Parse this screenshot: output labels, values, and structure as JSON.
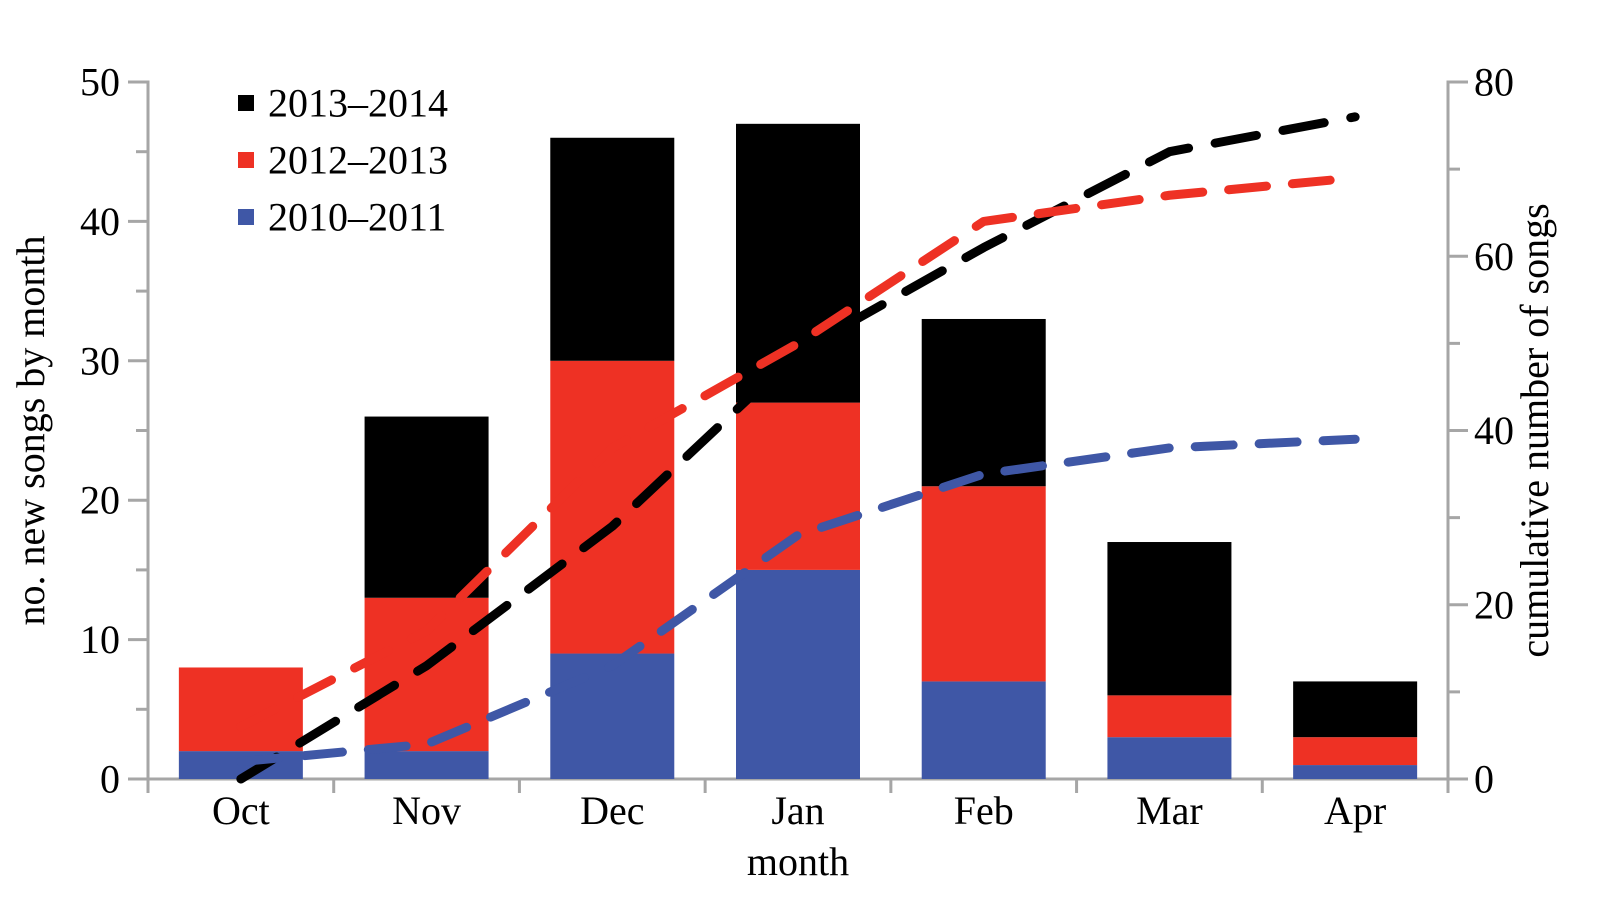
{
  "chart_data": {
    "type": "combo-stacked-bar-line",
    "title": "",
    "xlabel": "month",
    "categories": [
      "Oct",
      "Nov",
      "Dec",
      "Jan",
      "Feb",
      "Mar",
      "Apr"
    ],
    "left_axis": {
      "label": "no. new songs by month",
      "range": [
        0,
        50
      ],
      "major_ticks": [
        0,
        10,
        20,
        30,
        40,
        50
      ],
      "minor_ticks": [
        5,
        15,
        25,
        35,
        45
      ]
    },
    "right_axis": {
      "label": "cumulative number of songs",
      "range": [
        0,
        80
      ],
      "major_ticks": [
        0,
        20,
        40,
        60,
        80
      ],
      "minor_ticks": [
        10,
        30,
        50,
        70
      ]
    },
    "bar_series": [
      {
        "name": "2010–2011",
        "color": "#3f57a6",
        "values": [
          2,
          2,
          9,
          15,
          7,
          3,
          1
        ]
      },
      {
        "name": "2012–2013",
        "color": "#ee3124",
        "values": [
          6,
          11,
          21,
          12,
          14,
          3,
          2
        ]
      },
      {
        "name": "2013–2014",
        "color": "#000000",
        "values": [
          0,
          13,
          16,
          20,
          12,
          11,
          4
        ]
      }
    ],
    "bar_totals": [
      8,
      26,
      46,
      47,
      33,
      17,
      7
    ],
    "line_series": [
      {
        "name": "2013–2014",
        "color": "#000000",
        "values": [
          0,
          13,
          29,
          49,
          61,
          72,
          76
        ],
        "dash": [
          42,
          27
        ]
      },
      {
        "name": "2012–2013",
        "color": "#ee3124",
        "values": [
          6,
          17,
          38,
          50,
          64,
          67,
          69
        ],
        "dash": [
          38,
          26
        ]
      },
      {
        "name": "2010–2011",
        "color": "#3f57a6",
        "values": [
          2,
          4,
          13,
          28,
          35,
          38,
          39
        ],
        "dash": [
          38,
          26
        ]
      }
    ],
    "legend": [
      {
        "label": "2013–2014",
        "color": "#000000"
      },
      {
        "label": "2012–2013",
        "color": "#ee3124"
      },
      {
        "label": "2010–2011",
        "color": "#3f57a6"
      }
    ],
    "legend_position": "upper-left",
    "grid": false,
    "line_style": "dashed",
    "lines_axis": "right",
    "axis_color": "#a6a6a6",
    "text_color": "#000000",
    "background": "#ffffff"
  }
}
